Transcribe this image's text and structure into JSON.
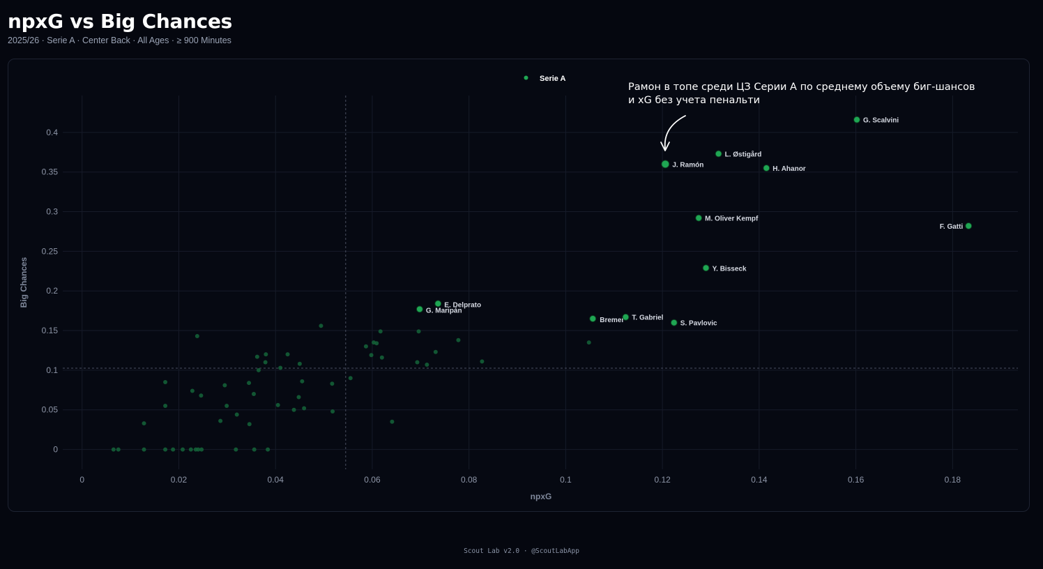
{
  "header": {
    "title": "npxG vs Big Chances",
    "subtitle": "2025/26 · Serie A · Center Back · All Ages · ≥ 900 Minutes"
  },
  "footer": {
    "text": "Scout Lab v2.0 · @ScoutLabApp"
  },
  "colors": {
    "background": "#05070f",
    "highlight": "#1fa653",
    "muted": "#15643a"
  },
  "chart_data": {
    "type": "scatter",
    "title": "npxG vs Big Chances",
    "xlabel": "npxG",
    "ylabel": "Big Chances",
    "xlim": [
      -0.004,
      0.1935
    ],
    "ylim": [
      -0.025,
      0.4465
    ],
    "x_ticks": [
      0,
      0.02,
      0.04,
      0.06,
      0.08,
      0.1,
      0.12,
      0.14,
      0.16,
      0.18
    ],
    "y_ticks": [
      0,
      0.05,
      0.1,
      0.15,
      0.2,
      0.25,
      0.3,
      0.35,
      0.4
    ],
    "grid": true,
    "legend": {
      "position": "top-center",
      "entries": [
        "Serie A"
      ]
    },
    "reference_lines": {
      "x_average": 0.0545,
      "y_average": 0.1025
    },
    "annotation": {
      "lines": [
        "Рамон в топе среди ЦЗ Серии А по среднему объему биг-шансов",
        "и xG без учета пенальти"
      ],
      "target": "J. Ramón"
    },
    "highlighted": [
      {
        "name": "G. Scalvini",
        "x": 0.1602,
        "y": 0.416
      },
      {
        "name": "L. Østigård",
        "x": 0.1316,
        "y": 0.373
      },
      {
        "name": "J. Ramón",
        "x": 0.1206,
        "y": 0.36
      },
      {
        "name": "H. Ahanor",
        "x": 0.1415,
        "y": 0.355
      },
      {
        "name": "M. Oliver Kempf",
        "x": 0.1275,
        "y": 0.292
      },
      {
        "name": "F. Gatti",
        "x": 0.1833,
        "y": 0.282
      },
      {
        "name": "Y. Bisseck",
        "x": 0.129,
        "y": 0.229
      },
      {
        "name": "E. Delprato",
        "x": 0.0736,
        "y": 0.184
      },
      {
        "name": "G. Maripán",
        "x": 0.0698,
        "y": 0.177
      },
      {
        "name": "Bremer",
        "x": 0.1056,
        "y": 0.165
      },
      {
        "name": "T. Gabriel",
        "x": 0.1124,
        "y": 0.167
      },
      {
        "name": "S. Pavlovic",
        "x": 0.1224,
        "y": 0.16
      }
    ],
    "others": [
      [
        0.0065,
        0.0
      ],
      [
        0.0075,
        0.0
      ],
      [
        0.0128,
        0.0
      ],
      [
        0.0172,
        0.0
      ],
      [
        0.0188,
        0.0
      ],
      [
        0.0208,
        0.0
      ],
      [
        0.0225,
        0.0
      ],
      [
        0.0235,
        0.0
      ],
      [
        0.024,
        0.0
      ],
      [
        0.0247,
        0.0
      ],
      [
        0.0318,
        0.0
      ],
      [
        0.0356,
        0.0
      ],
      [
        0.0384,
        0.0
      ],
      [
        0.0128,
        0.033
      ],
      [
        0.0172,
        0.055
      ],
      [
        0.0172,
        0.085
      ],
      [
        0.0228,
        0.074
      ],
      [
        0.0246,
        0.068
      ],
      [
        0.0238,
        0.143
      ],
      [
        0.0286,
        0.036
      ],
      [
        0.0295,
        0.081
      ],
      [
        0.0299,
        0.055
      ],
      [
        0.032,
        0.044
      ],
      [
        0.0345,
        0.084
      ],
      [
        0.0346,
        0.032
      ],
      [
        0.0355,
        0.07
      ],
      [
        0.0362,
        0.117
      ],
      [
        0.0365,
        0.1
      ],
      [
        0.0379,
        0.11
      ],
      [
        0.038,
        0.12
      ],
      [
        0.0405,
        0.056
      ],
      [
        0.041,
        0.103
      ],
      [
        0.0425,
        0.12
      ],
      [
        0.0438,
        0.05
      ],
      [
        0.0448,
        0.066
      ],
      [
        0.045,
        0.108
      ],
      [
        0.0455,
        0.086
      ],
      [
        0.0459,
        0.052
      ],
      [
        0.0494,
        0.156
      ],
      [
        0.0517,
        0.083
      ],
      [
        0.0518,
        0.048
      ],
      [
        0.0555,
        0.09
      ],
      [
        0.0587,
        0.13
      ],
      [
        0.0598,
        0.119
      ],
      [
        0.0603,
        0.135
      ],
      [
        0.0609,
        0.134
      ],
      [
        0.0617,
        0.149
      ],
      [
        0.062,
        0.116
      ],
      [
        0.0641,
        0.035
      ],
      [
        0.0693,
        0.11
      ],
      [
        0.0696,
        0.149
      ],
      [
        0.0713,
        0.107
      ],
      [
        0.0731,
        0.123
      ],
      [
        0.0778,
        0.138
      ],
      [
        0.0827,
        0.111
      ],
      [
        0.1048,
        0.135
      ]
    ]
  }
}
